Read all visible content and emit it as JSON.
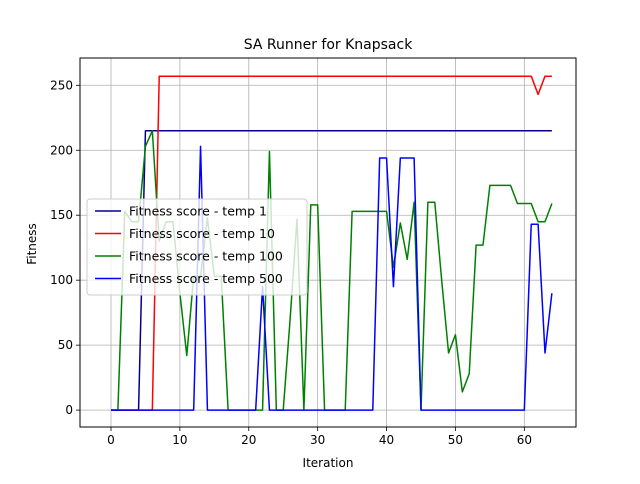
{
  "chart_data": {
    "type": "line",
    "title": "SA Runner for Knapsack",
    "xlabel": "Iteration",
    "ylabel": "Fitness",
    "xlim": [
      -4.5,
      67.5
    ],
    "ylim": [
      -13,
      271
    ],
    "xticks": [
      0,
      10,
      20,
      30,
      40,
      50,
      60
    ],
    "yticks": [
      0,
      50,
      100,
      150,
      200,
      250
    ],
    "grid": true,
    "legend_position": "center-left",
    "series": [
      {
        "name": "Fitness score - temp 1",
        "color": "#00008b",
        "x": [
          0,
          1,
          2,
          3,
          4,
          5,
          6,
          7,
          8,
          9,
          10,
          11,
          12,
          13,
          14,
          15,
          16,
          17,
          18,
          19,
          20,
          21,
          22,
          23,
          24,
          25,
          26,
          27,
          28,
          29,
          30,
          31,
          32,
          33,
          34,
          35,
          36,
          37,
          38,
          39,
          40,
          41,
          42,
          43,
          44,
          45,
          46,
          47,
          48,
          49,
          50,
          51,
          52,
          53,
          54,
          55,
          56,
          57,
          58,
          59,
          60,
          61,
          62,
          63,
          64
        ],
        "y": [
          0,
          0,
          0,
          0,
          0,
          215,
          215,
          215,
          215,
          215,
          215,
          215,
          215,
          215,
          215,
          215,
          215,
          215,
          215,
          215,
          215,
          215,
          215,
          215,
          215,
          215,
          215,
          215,
          215,
          215,
          215,
          215,
          215,
          215,
          215,
          215,
          215,
          215,
          215,
          215,
          215,
          215,
          215,
          215,
          215,
          215,
          215,
          215,
          215,
          215,
          215,
          215,
          215,
          215,
          215,
          215,
          215,
          215,
          215,
          215,
          215,
          215,
          215,
          215,
          215
        ]
      },
      {
        "name": "Fitness score - temp 10",
        "color": "#ff0000",
        "x": [
          0,
          1,
          2,
          3,
          4,
          5,
          6,
          7,
          8,
          9,
          10,
          11,
          12,
          13,
          14,
          15,
          16,
          17,
          18,
          19,
          20,
          21,
          22,
          23,
          24,
          25,
          26,
          27,
          28,
          29,
          30,
          31,
          32,
          33,
          34,
          35,
          36,
          37,
          38,
          39,
          40,
          41,
          42,
          43,
          44,
          45,
          46,
          47,
          48,
          49,
          50,
          51,
          52,
          53,
          54,
          55,
          56,
          57,
          58,
          59,
          60,
          61,
          62,
          63,
          64
        ],
        "y": [
          0,
          0,
          0,
          0,
          0,
          0,
          0,
          257,
          257,
          257,
          257,
          257,
          257,
          257,
          257,
          257,
          257,
          257,
          257,
          257,
          257,
          257,
          257,
          257,
          257,
          257,
          257,
          257,
          257,
          257,
          257,
          257,
          257,
          257,
          257,
          257,
          257,
          257,
          257,
          257,
          257,
          257,
          257,
          257,
          257,
          257,
          257,
          257,
          257,
          257,
          257,
          257,
          257,
          257,
          257,
          257,
          257,
          257,
          257,
          257,
          257,
          257,
          243,
          257,
          257
        ]
      },
      {
        "name": "Fitness score - temp 100",
        "color": "#008000",
        "x": [
          0,
          1,
          2,
          3,
          4,
          5,
          6,
          7,
          8,
          9,
          10,
          11,
          12,
          13,
          14,
          15,
          16,
          17,
          18,
          19,
          20,
          21,
          22,
          23,
          24,
          25,
          26,
          27,
          28,
          29,
          30,
          31,
          32,
          33,
          34,
          35,
          36,
          37,
          38,
          39,
          40,
          41,
          42,
          43,
          44,
          45,
          46,
          47,
          48,
          49,
          50,
          51,
          52,
          53,
          54,
          55,
          56,
          57,
          58,
          59,
          60,
          61,
          62,
          63,
          64
        ],
        "y": [
          0,
          0,
          153,
          145,
          145,
          203,
          215,
          130,
          145,
          145,
          90,
          42,
          103,
          103,
          148,
          103,
          103,
          0,
          0,
          0,
          0,
          0,
          0,
          199,
          0,
          0,
          70,
          147,
          0,
          158,
          158,
          0,
          0,
          0,
          0,
          153,
          153,
          153,
          153,
          153,
          153,
          110,
          144,
          116,
          160,
          0,
          160,
          160,
          100,
          44,
          58,
          14,
          28,
          127,
          127,
          173,
          173,
          173,
          173,
          159,
          159,
          159,
          145,
          145,
          159
        ]
      },
      {
        "name": "Fitness score - temp 500",
        "color": "#0000ff",
        "x": [
          0,
          1,
          2,
          3,
          4,
          5,
          6,
          7,
          8,
          9,
          10,
          11,
          12,
          13,
          14,
          15,
          16,
          17,
          18,
          19,
          20,
          21,
          22,
          23,
          24,
          25,
          26,
          27,
          28,
          29,
          30,
          31,
          32,
          33,
          34,
          35,
          36,
          37,
          38,
          39,
          40,
          41,
          42,
          43,
          44,
          45,
          46,
          47,
          48,
          49,
          50,
          51,
          52,
          53,
          54,
          55,
          56,
          57,
          58,
          59,
          60,
          61,
          62,
          63,
          64
        ],
        "y": [
          0,
          0,
          0,
          0,
          0,
          0,
          0,
          0,
          0,
          0,
          0,
          0,
          0,
          203,
          0,
          0,
          0,
          0,
          0,
          0,
          0,
          0,
          95,
          0,
          0,
          0,
          0,
          0,
          0,
          0,
          0,
          0,
          0,
          0,
          0,
          0,
          0,
          0,
          0,
          194,
          194,
          95,
          194,
          194,
          194,
          0,
          0,
          0,
          0,
          0,
          0,
          0,
          0,
          0,
          0,
          0,
          0,
          0,
          0,
          0,
          0,
          143,
          143,
          44,
          90
        ]
      }
    ]
  }
}
